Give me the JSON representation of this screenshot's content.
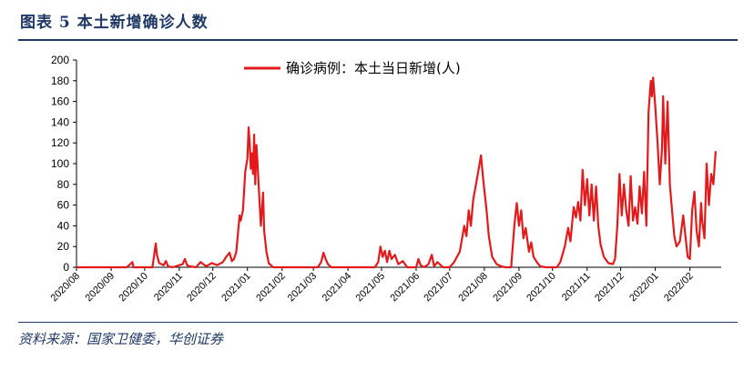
{
  "figure": {
    "title": "图表 5    本土新增确诊人数",
    "source": "资料来源：国家卫健委，华创证券"
  },
  "colors": {
    "series": "#e31a1c",
    "accent": "#1f3864"
  },
  "chart_data": {
    "type": "line",
    "ylim": [
      0,
      200
    ],
    "yticks": [
      0,
      20,
      40,
      60,
      80,
      100,
      120,
      140,
      160,
      180,
      200
    ],
    "xticks": [
      "2020/08",
      "2020/09",
      "2020/10",
      "2020/11",
      "2020/12",
      "2021/01",
      "2021/02",
      "2021/03",
      "2021/04",
      "2021/05",
      "2021/06",
      "2021/07",
      "2021/08",
      "2021/09",
      "2021/10",
      "2021/11",
      "2021/12",
      "2022/01",
      "2022/02"
    ],
    "legend": "top-center",
    "grid": false,
    "series": [
      {
        "name": "确诊病例：本土当日新增(人)",
        "points": [
          [
            "2020-08-01",
            0
          ],
          [
            "2020-09-15",
            0
          ],
          [
            "2020-09-20",
            5
          ],
          [
            "2020-09-21",
            0
          ],
          [
            "2020-10-08",
            0
          ],
          [
            "2020-10-11",
            23
          ],
          [
            "2020-10-12",
            12
          ],
          [
            "2020-10-14",
            4
          ],
          [
            "2020-10-18",
            2
          ],
          [
            "2020-10-20",
            6
          ],
          [
            "2020-10-22",
            1
          ],
          [
            "2020-10-26",
            0
          ],
          [
            "2020-11-04",
            3
          ],
          [
            "2020-11-06",
            8
          ],
          [
            "2020-11-08",
            2
          ],
          [
            "2020-11-10",
            1
          ],
          [
            "2020-11-16",
            0
          ],
          [
            "2020-11-20",
            5
          ],
          [
            "2020-11-25",
            1
          ],
          [
            "2020-11-30",
            4
          ],
          [
            "2020-12-05",
            2
          ],
          [
            "2020-12-10",
            5
          ],
          [
            "2020-12-13",
            10
          ],
          [
            "2020-12-16",
            14
          ],
          [
            "2020-12-18",
            6
          ],
          [
            "2020-12-20",
            8
          ],
          [
            "2020-12-22",
            15
          ],
          [
            "2020-12-25",
            50
          ],
          [
            "2020-12-26",
            45
          ],
          [
            "2020-12-28",
            55
          ],
          [
            "2020-12-30",
            92
          ],
          [
            "2021-01-01",
            105
          ],
          [
            "2021-01-02",
            135
          ],
          [
            "2021-01-03",
            120
          ],
          [
            "2021-01-04",
            95
          ],
          [
            "2021-01-05",
            110
          ],
          [
            "2021-01-06",
            90
          ],
          [
            "2021-01-07",
            128
          ],
          [
            "2021-01-08",
            80
          ],
          [
            "2021-01-09",
            118
          ],
          [
            "2021-01-10",
            100
          ],
          [
            "2021-01-12",
            60
          ],
          [
            "2021-01-13",
            40
          ],
          [
            "2021-01-15",
            72
          ],
          [
            "2021-01-16",
            35
          ],
          [
            "2021-01-18",
            15
          ],
          [
            "2021-01-20",
            4
          ],
          [
            "2021-01-24",
            0
          ],
          [
            "2021-03-05",
            0
          ],
          [
            "2021-03-08",
            5
          ],
          [
            "2021-03-10",
            14
          ],
          [
            "2021-03-12",
            8
          ],
          [
            "2021-03-14",
            3
          ],
          [
            "2021-03-17",
            0
          ],
          [
            "2021-04-25",
            0
          ],
          [
            "2021-04-28",
            5
          ],
          [
            "2021-04-30",
            20
          ],
          [
            "2021-05-02",
            10
          ],
          [
            "2021-05-04",
            16
          ],
          [
            "2021-05-06",
            5
          ],
          [
            "2021-05-08",
            16
          ],
          [
            "2021-05-10",
            8
          ],
          [
            "2021-05-13",
            12
          ],
          [
            "2021-05-16",
            3
          ],
          [
            "2021-05-20",
            6
          ],
          [
            "2021-05-24",
            0
          ],
          [
            "2021-06-01",
            0
          ],
          [
            "2021-06-03",
            8
          ],
          [
            "2021-06-05",
            2
          ],
          [
            "2021-06-08",
            0
          ],
          [
            "2021-06-12",
            3
          ],
          [
            "2021-06-15",
            12
          ],
          [
            "2021-06-17",
            1
          ],
          [
            "2021-06-20",
            5
          ],
          [
            "2021-06-25",
            0
          ],
          [
            "2021-07-01",
            0
          ],
          [
            "2021-07-05",
            5
          ],
          [
            "2021-07-10",
            15
          ],
          [
            "2021-07-14",
            40
          ],
          [
            "2021-07-16",
            30
          ],
          [
            "2021-07-18",
            55
          ],
          [
            "2021-07-20",
            40
          ],
          [
            "2021-07-22",
            65
          ],
          [
            "2021-07-25",
            83
          ],
          [
            "2021-07-27",
            95
          ],
          [
            "2021-07-29",
            108
          ],
          [
            "2021-07-31",
            85
          ],
          [
            "2021-08-03",
            55
          ],
          [
            "2021-08-05",
            30
          ],
          [
            "2021-08-08",
            10
          ],
          [
            "2021-08-12",
            3
          ],
          [
            "2021-08-16",
            1
          ],
          [
            "2021-08-20",
            0
          ],
          [
            "2021-08-25",
            0
          ],
          [
            "2021-08-28",
            42
          ],
          [
            "2021-08-30",
            62
          ],
          [
            "2021-09-01",
            40
          ],
          [
            "2021-09-03",
            55
          ],
          [
            "2021-09-05",
            28
          ],
          [
            "2021-09-07",
            38
          ],
          [
            "2021-09-10",
            15
          ],
          [
            "2021-09-12",
            24
          ],
          [
            "2021-09-14",
            10
          ],
          [
            "2021-09-17",
            5
          ],
          [
            "2021-09-20",
            1
          ],
          [
            "2021-09-25",
            0
          ],
          [
            "2021-10-05",
            0
          ],
          [
            "2021-10-08",
            5
          ],
          [
            "2021-10-12",
            20
          ],
          [
            "2021-10-15",
            38
          ],
          [
            "2021-10-17",
            25
          ],
          [
            "2021-10-20",
            58
          ],
          [
            "2021-10-22",
            48
          ],
          [
            "2021-10-24",
            63
          ],
          [
            "2021-10-26",
            45
          ],
          [
            "2021-10-28",
            94
          ],
          [
            "2021-10-30",
            60
          ],
          [
            "2021-11-01",
            85
          ],
          [
            "2021-11-03",
            50
          ],
          [
            "2021-11-05",
            80
          ],
          [
            "2021-11-07",
            45
          ],
          [
            "2021-11-09",
            78
          ],
          [
            "2021-11-11",
            40
          ],
          [
            "2021-11-13",
            22
          ],
          [
            "2021-11-16",
            10
          ],
          [
            "2021-11-20",
            4
          ],
          [
            "2021-11-24",
            3
          ],
          [
            "2021-11-26",
            8
          ],
          [
            "2021-11-28",
            40
          ],
          [
            "2021-11-30",
            90
          ],
          [
            "2021-12-02",
            50
          ],
          [
            "2021-12-04",
            80
          ],
          [
            "2021-12-06",
            55
          ],
          [
            "2021-12-08",
            40
          ],
          [
            "2021-12-10",
            88
          ],
          [
            "2021-12-12",
            45
          ],
          [
            "2021-12-14",
            58
          ],
          [
            "2021-12-16",
            42
          ],
          [
            "2021-12-18",
            78
          ],
          [
            "2021-12-20",
            52
          ],
          [
            "2021-12-22",
            92
          ],
          [
            "2021-12-24",
            40
          ],
          [
            "2021-12-26",
            150
          ],
          [
            "2021-12-28",
            180
          ],
          [
            "2021-12-29",
            165
          ],
          [
            "2021-12-30",
            183
          ],
          [
            "2022-01-01",
            155
          ],
          [
            "2022-01-03",
            120
          ],
          [
            "2022-01-05",
            80
          ],
          [
            "2022-01-07",
            115
          ],
          [
            "2022-01-08",
            165
          ],
          [
            "2022-01-10",
            100
          ],
          [
            "2022-01-12",
            160
          ],
          [
            "2022-01-14",
            80
          ],
          [
            "2022-01-16",
            55
          ],
          [
            "2022-01-18",
            30
          ],
          [
            "2022-01-20",
            20
          ],
          [
            "2022-01-23",
            25
          ],
          [
            "2022-01-26",
            50
          ],
          [
            "2022-01-28",
            30
          ],
          [
            "2022-01-30",
            10
          ],
          [
            "2022-02-01",
            8
          ],
          [
            "2022-02-03",
            55
          ],
          [
            "2022-02-05",
            73
          ],
          [
            "2022-02-07",
            35
          ],
          [
            "2022-02-09",
            20
          ],
          [
            "2022-02-11",
            62
          ],
          [
            "2022-02-12",
            45
          ],
          [
            "2022-02-14",
            28
          ],
          [
            "2022-02-16",
            100
          ],
          [
            "2022-02-18",
            60
          ],
          [
            "2022-02-20",
            90
          ],
          [
            "2022-02-22",
            80
          ],
          [
            "2022-02-24",
            112
          ]
        ]
      }
    ]
  }
}
